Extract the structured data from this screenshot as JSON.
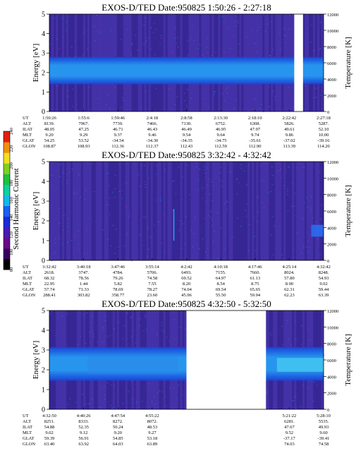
{
  "colorbar": {
    "label": "Second Harmonic Current",
    "ticks": [
      "80",
      "100",
      "120",
      "140",
      "160",
      "180",
      "200",
      "220",
      "240"
    ],
    "colors": [
      "#000000",
      "#3a0060",
      "#6a0a8a",
      "#4a1ab0",
      "#1a2ad8",
      "#1a60f0",
      "#14b8e8",
      "#10d0a0",
      "#20c040",
      "#80d020",
      "#f0e020",
      "#f09010",
      "#e02010"
    ]
  },
  "chart_data": [
    {
      "type": "heatmap",
      "title": "EXOS-D/TED   Date:950825   1:50:26 - 2:27:18",
      "ylabel": "Energy [eV]",
      "ylabel_right": "Temperature [K]",
      "ylim": [
        0,
        5
      ],
      "ylim_right": [
        0,
        12000
      ],
      "yticks": [
        "0",
        "1",
        "2",
        "3",
        "4",
        "5"
      ],
      "yticks_right": [
        "0",
        "2000",
        "4000",
        "6000",
        "8000",
        "10000",
        "12000"
      ],
      "gaps": [
        [
          0.893,
          0.925
        ]
      ],
      "band": {
        "center_eV": 2.1,
        "halfwidth_eV": 0.7
      },
      "ephemeris": {
        "labels": [
          "UT",
          "ALT",
          "ILAT",
          "MLT",
          "GLAT",
          "GLON"
        ],
        "columns": [
          [
            "1:50:26",
            "8139.",
            "48.05",
            "9.20",
            "54.25",
            "108.87"
          ],
          [
            "1:55:6",
            "7967.",
            "47.25",
            "9.29",
            "53.52",
            "108.93"
          ],
          [
            "1:59:46",
            "7739.",
            "46.71",
            "9.37",
            "-34.54",
            "112.36"
          ],
          [
            "2:4:18",
            "7466.",
            "46.43",
            "9.46",
            "-34.30",
            "112.37"
          ],
          [
            "2:8:58",
            "7130.",
            "46.49",
            "9.54",
            "-34.35",
            "112.43"
          ],
          [
            "2:13:30",
            "6752.",
            "46.95",
            "9.64",
            "-34.75",
            "112.59"
          ],
          [
            "2:18:10",
            "6308.",
            "47.97",
            "9.74",
            "-35.61",
            "112.90"
          ],
          [
            "2:22:42",
            "5826.",
            "49.61",
            "9.86",
            "-37.02",
            "113.39"
          ],
          [
            "2:27:18",
            "5287.",
            "52.10",
            "10.00",
            "-39.16",
            "114.20"
          ]
        ]
      }
    },
    {
      "type": "heatmap",
      "title": "EXOS-D/TED   Date:950825   3:32:42 - 4:32:42",
      "ylabel": "Energy [eV]",
      "ylabel_right": "Temperature [K]",
      "ylim": [
        0,
        5
      ],
      "ylim_right": [
        0,
        12000
      ],
      "yticks": [
        "0",
        "1",
        "2",
        "3",
        "4",
        "5"
      ],
      "yticks_right": [
        "0",
        "2000",
        "4000",
        "6000",
        "8000",
        "10000",
        "12000"
      ],
      "gaps": [],
      "band": null,
      "ephemeris": {
        "labels": [
          "UT",
          "ALT",
          "ILAT",
          "MLT",
          "GLAT",
          "GLON"
        ],
        "columns": [
          [
            "3:32:42",
            "2618.",
            "68.32",
            "22.95",
            "57.74",
            "288.41"
          ],
          [
            "3:40:18",
            "3747.",
            "78.56",
            "1.44",
            "71.33",
            "303.82"
          ],
          [
            "3:47:46",
            "4784.",
            "79.26",
            "5.82",
            "78.69",
            "358.77"
          ],
          [
            "3:55:14",
            "5706.",
            "74.58",
            "7.55",
            "78.27",
            "23.60"
          ],
          [
            "4:2:42",
            "6493.",
            "69.52",
            "8.20",
            "74.04",
            "45.96"
          ],
          [
            "4:10:18",
            "7155.",
            "64.97",
            "8.54",
            "69.54",
            "55.50"
          ],
          [
            "4:17:46",
            "7660.",
            "61.13",
            "8.75",
            "65.65",
            "59.94"
          ],
          [
            "4:25:14",
            "8024.",
            "57.80",
            "8.90",
            "62.31",
            "62.23"
          ],
          [
            "4:32:42",
            "8248.",
            "54.93",
            "9.02",
            "59.44",
            "63.39"
          ]
        ]
      }
    },
    {
      "type": "heatmap",
      "title": "EXOS-D/TED   Date:950825   4:32:50 - 5:32:50",
      "ylabel": "Energy [eV]",
      "ylabel_right": "Temperature [K]",
      "ylim": [
        0,
        5
      ],
      "ylim_right": [
        0,
        12000
      ],
      "yticks": [
        "0",
        "1",
        "2",
        "3",
        "4",
        "5"
      ],
      "yticks_right": [
        "0",
        "2000",
        "4000",
        "6000",
        "8000",
        "10000",
        "12000"
      ],
      "gaps": [
        [
          0.5,
          0.79
        ]
      ],
      "band": {
        "center_eV": 2.3,
        "halfwidth_eV": 0.85
      },
      "ephemeris": {
        "labels": [
          "UT",
          "ALT",
          "ILAT",
          "MLT",
          "GLAT",
          "GLON"
        ],
        "columns": [
          [
            "4:32:50",
            "8251.",
            "54.88",
            "9.02",
            "59.39",
            "63.40"
          ],
          [
            "4:40:26",
            "8333.",
            "52.35",
            "9.12",
            "56.91",
            "63.92"
          ],
          [
            "4:47:54",
            "8272.",
            "50.24",
            "9.20",
            "54.85",
            "64.03"
          ],
          [
            "4:55:22",
            "8072.",
            "48.53",
            "9.27",
            "53.18",
            "63.89"
          ],
          [
            "",
            "",
            "",
            "",
            "",
            ""
          ],
          [
            "",
            "",
            "",
            "",
            "",
            ""
          ],
          [
            "",
            "",
            "",
            "",
            "",
            ""
          ],
          [
            "5:21:22",
            "6281.",
            "47.67",
            "9.52",
            "-37.17",
            "74.03"
          ],
          [
            "5:28:10",
            "5535.",
            "49.93",
            "9.60",
            "-39.41",
            "74.58"
          ]
        ]
      }
    }
  ]
}
